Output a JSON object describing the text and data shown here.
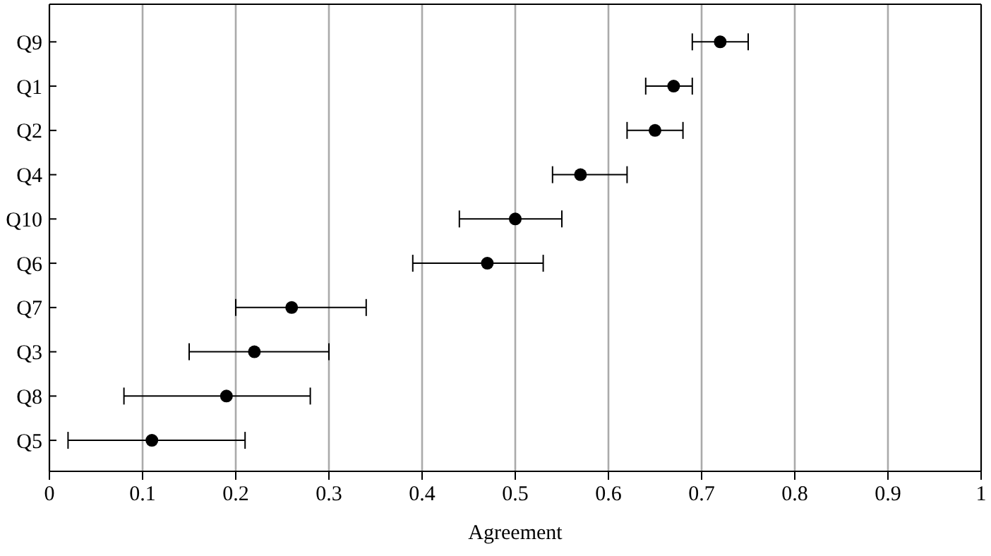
{
  "chart_data": {
    "type": "scatter",
    "xlabel": "Agreement",
    "categories": [
      "Q9",
      "Q1",
      "Q2",
      "Q4",
      "Q10",
      "Q6",
      "Q7",
      "Q3",
      "Q8",
      "Q5"
    ],
    "values": [
      0.72,
      0.67,
      0.65,
      0.57,
      0.5,
      0.47,
      0.26,
      0.22,
      0.19,
      0.11
    ],
    "errors": [
      [
        0.69,
        0.75
      ],
      [
        0.64,
        0.69
      ],
      [
        0.62,
        0.68
      ],
      [
        0.54,
        0.62
      ],
      [
        0.44,
        0.55
      ],
      [
        0.39,
        0.53
      ],
      [
        0.2,
        0.34
      ],
      [
        0.15,
        0.3
      ],
      [
        0.08,
        0.28
      ],
      [
        0.02,
        0.21
      ]
    ],
    "orientation": "horizontal",
    "color": "#000000",
    "marker": "circle",
    "xlim": [
      0,
      1
    ],
    "xticks": [
      0,
      0.1,
      0.2,
      0.3,
      0.4,
      0.5,
      0.6,
      0.7,
      0.8,
      0.9,
      1
    ],
    "grid": "x"
  }
}
